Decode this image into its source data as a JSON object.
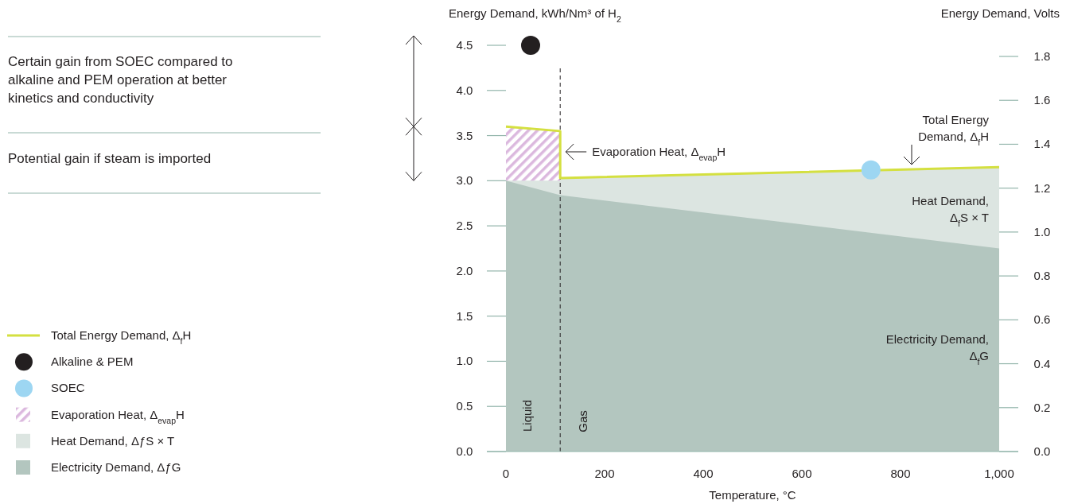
{
  "chart_data": {
    "type": "area",
    "xlabel": "Temperature, °C",
    "ylabel": "Energy Demand, kWh/Nm³ of H$_{2}$",
    "y2label": "Energy Demand, Volts",
    "xlim": [
      0,
      1000
    ],
    "xticks": [
      0,
      200,
      400,
      600,
      800,
      {
        "value": 1000,
        "label": "1,000"
      }
    ],
    "ylim": [
      0,
      4.5
    ],
    "yticks": [
      {
        "value": 0,
        "label": "0.0"
      },
      0.5,
      {
        "value": 1,
        "label": "1.0"
      },
      1.5,
      {
        "value": 2,
        "label": "2.0"
      },
      2.5,
      {
        "value": 3,
        "label": "3.0"
      },
      3.5,
      {
        "value": 4,
        "label": "4.0"
      },
      4.5
    ],
    "y2lim": [
      0,
      1.8
    ],
    "y2ticks": [
      {
        "value": 0,
        "label": "0.0"
      },
      0.2,
      0.4,
      0.6,
      0.8,
      {
        "value": 1,
        "label": "1.0"
      },
      1.2,
      1.4,
      1.6,
      1.8
    ],
    "grid": false,
    "legend": "left",
    "series": [
      {
        "name": "Total Energy Demand, Δ$_{f}$H",
        "type": "line",
        "color": "#d4e040",
        "x": [
          0,
          110,
          110,
          1000
        ],
        "values": [
          3.6,
          3.55,
          3.03,
          3.15
        ]
      },
      {
        "name": "Alkaline & PEM",
        "type": "scatter",
        "color": "#231f20",
        "x": [
          50
        ],
        "values": [
          4.5
        ]
      },
      {
        "name": "SOEC",
        "type": "scatter",
        "color": "#9dd6f2",
        "x": [
          740
        ],
        "values": [
          3.12
        ]
      },
      {
        "name": "Evaporation Heat, Δ$_{evap}$H",
        "color": "#dbb8de",
        "x": [
          0,
          110
        ],
        "values": [
          3.6,
          3.55
        ]
      },
      {
        "name": "Heat Demand, ΔƒS × T",
        "color": "#dce5e1",
        "x": [
          0,
          110,
          110,
          1000
        ],
        "values": [
          3.0,
          3.0,
          3.03,
          3.15
        ]
      },
      {
        "name": "Electricity Demand, ΔƒG",
        "color": "#b3c6bf",
        "x": [
          0,
          110,
          1000
        ],
        "values": [
          3.0,
          2.84,
          2.25
        ]
      }
    ],
    "ref_lines": [
      {
        "axis": "x",
        "value": 110,
        "line_style": "dashed",
        "color": "#231f20"
      }
    ],
    "annotations": [
      "Certain gain from SOEC compared to alkaline and PEM operation at better kinetics and conductivity",
      "Potential gain if steam is imported",
      "Total Energy Demand, Δ$_{f}$H",
      "Heat Demand, Δ$_{f}$S × T",
      "Electricity Demand, Δ$_{f}$G",
      "Liquid",
      "Gas",
      {
        "text": "Evaporation Heat, Δ$_{evap}$H",
        "x": 110,
        "y": 3.32
      }
    ]
  }
}
